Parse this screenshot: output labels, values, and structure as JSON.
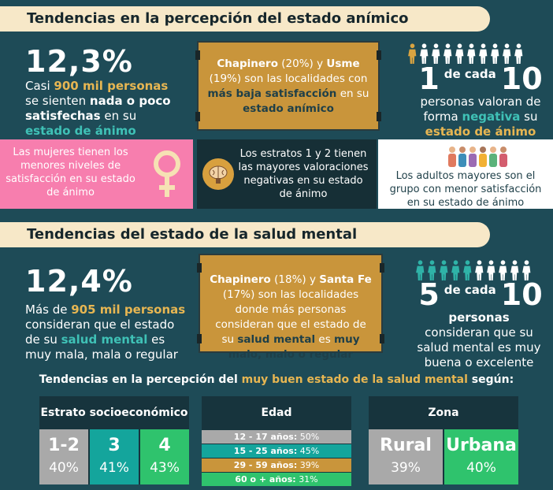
{
  "section1": {
    "title": "Tendencias en la percepción del estado anímico",
    "stat": "12,3%",
    "stat_text": [
      "Casi ",
      "900 mil personas",
      " se sienten ",
      "nada o poco satisfechas",
      " en su ",
      "estado de ánimo"
    ],
    "localities": [
      "Chapinero",
      " (20%) y ",
      "Usme",
      " (19%) son las localidades con ",
      "más baja satisfacción",
      " en su ",
      "estado anímico"
    ],
    "ratio": {
      "count": "1",
      "connector": "de cada",
      "total": "10",
      "text": [
        "personas valoran de forma ",
        "negativa",
        " su ",
        "estado de ánimo"
      ]
    },
    "women": "Las mujeres tienen los menores niveles de satisfacción en su estado de ánimo",
    "strata": "Los estratos 1 y 2 tienen las mayores valoraciones negativas en su estado de ánimo",
    "elders": "Los adultos mayores son el grupo con menor satisfacción en su estado de ánimo"
  },
  "section2": {
    "title": "Tendencias del estado de la salud mental",
    "stat": "12,4%",
    "stat_text": [
      "Más de ",
      "905 mil personas",
      " consideran que el estado de su ",
      "salud mental",
      " es muy mala, mala o regular"
    ],
    "localities": [
      "Chapinero",
      " (18%) y ",
      "Santa Fe",
      " (17%) son las localidades donde más personas consideran que el estado de su ",
      "salud mental",
      " es ",
      "muy malo, malo o regular"
    ],
    "ratio": {
      "count": "5",
      "connector": "de cada",
      "total": "10",
      "text": [
        "personas",
        " consideran que su salud mental es muy buena o excelente"
      ]
    }
  },
  "breakdown": {
    "title": [
      "Tendencias en la percepción del ",
      "muy buen estado de la salud mental",
      " según:"
    ],
    "tables": [
      {
        "header": "Estrato socioeconómico",
        "cells": [
          {
            "label": "1-2",
            "value": "40%"
          },
          {
            "label": "3",
            "value": "41%"
          },
          {
            "label": "4",
            "value": "43%"
          }
        ]
      },
      {
        "header": "Edad",
        "rows": [
          {
            "label": "12 - 17 años:",
            "value": "50%"
          },
          {
            "label": "15 - 25 años:",
            "value": "45%"
          },
          {
            "label": "29 - 59 años:",
            "value": "39%"
          },
          {
            "label": "60 o + años:",
            "value": "31%"
          }
        ]
      },
      {
        "header": "Zona",
        "cells": [
          {
            "label": "Rural",
            "value": "39%"
          },
          {
            "label": "Urbana",
            "value": "40%"
          }
        ]
      }
    ]
  }
}
